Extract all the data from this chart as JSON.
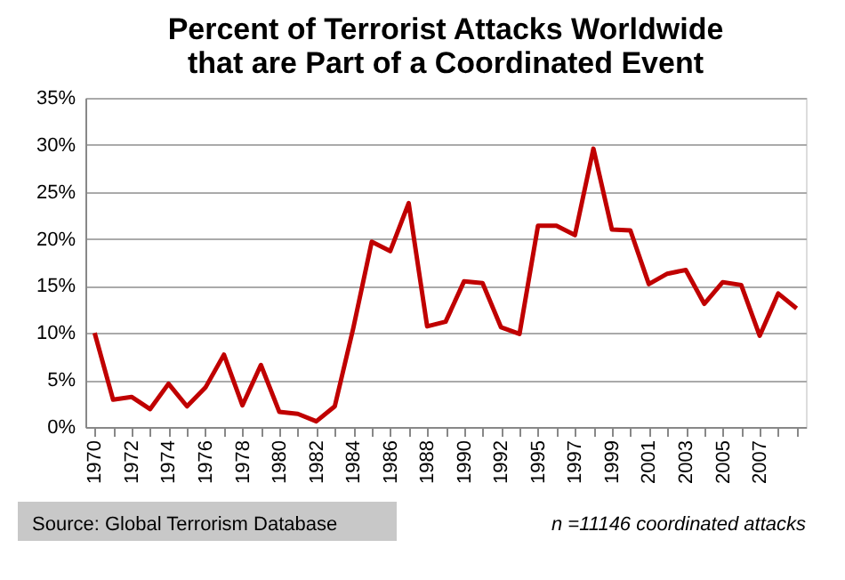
{
  "chart_data": {
    "type": "line",
    "title": [
      "Percent of Terrorist Attacks Worldwide",
      "that are Part of a Coordinated Event"
    ],
    "categories": [
      "1970",
      null,
      "1972",
      null,
      "1974",
      null,
      "1976",
      null,
      "1978",
      null,
      "1980",
      null,
      "1982",
      null,
      "1984",
      null,
      "1986",
      null,
      "1988",
      null,
      "1990",
      null,
      "1992",
      null,
      "1995",
      null,
      "1997",
      null,
      "1999",
      null,
      "2001",
      null,
      "2003",
      null,
      "2005",
      null,
      "2007",
      null,
      null
    ],
    "series": [
      {
        "color": "#c00000",
        "values": [
          10,
          2.9,
          3.2,
          1.9,
          4.6,
          2.2,
          4.2,
          7.7,
          2.3,
          6.6,
          1.6,
          1.4,
          0.6,
          2.2,
          10.5,
          19.7,
          18.7,
          23.8,
          10.7,
          11.2,
          15.5,
          15.3,
          10.6,
          9.9,
          21.4,
          21.4,
          20.4,
          29.6,
          21,
          20.9,
          15.2,
          16.3,
          16.7,
          13.1,
          15.4,
          15.1,
          9.7,
          14.2,
          12.6
        ]
      }
    ],
    "ylim": [
      0,
      35
    ],
    "yticks": [
      {
        "value": 0,
        "label": "0%"
      },
      {
        "value": 5,
        "label": "5%"
      },
      {
        "value": 10,
        "label": "10%"
      },
      {
        "value": 15,
        "label": "15%"
      },
      {
        "value": 20,
        "label": "20%"
      },
      {
        "value": 25,
        "label": "25%"
      },
      {
        "value": 30,
        "label": "30%"
      },
      {
        "value": 35,
        "label": "35%"
      }
    ],
    "grid": "y",
    "legend": false,
    "marker": "none",
    "line_style": "solid",
    "annotations": [
      "Source: Global Terrorism Database",
      "n =11146 coordinated attacks"
    ]
  }
}
